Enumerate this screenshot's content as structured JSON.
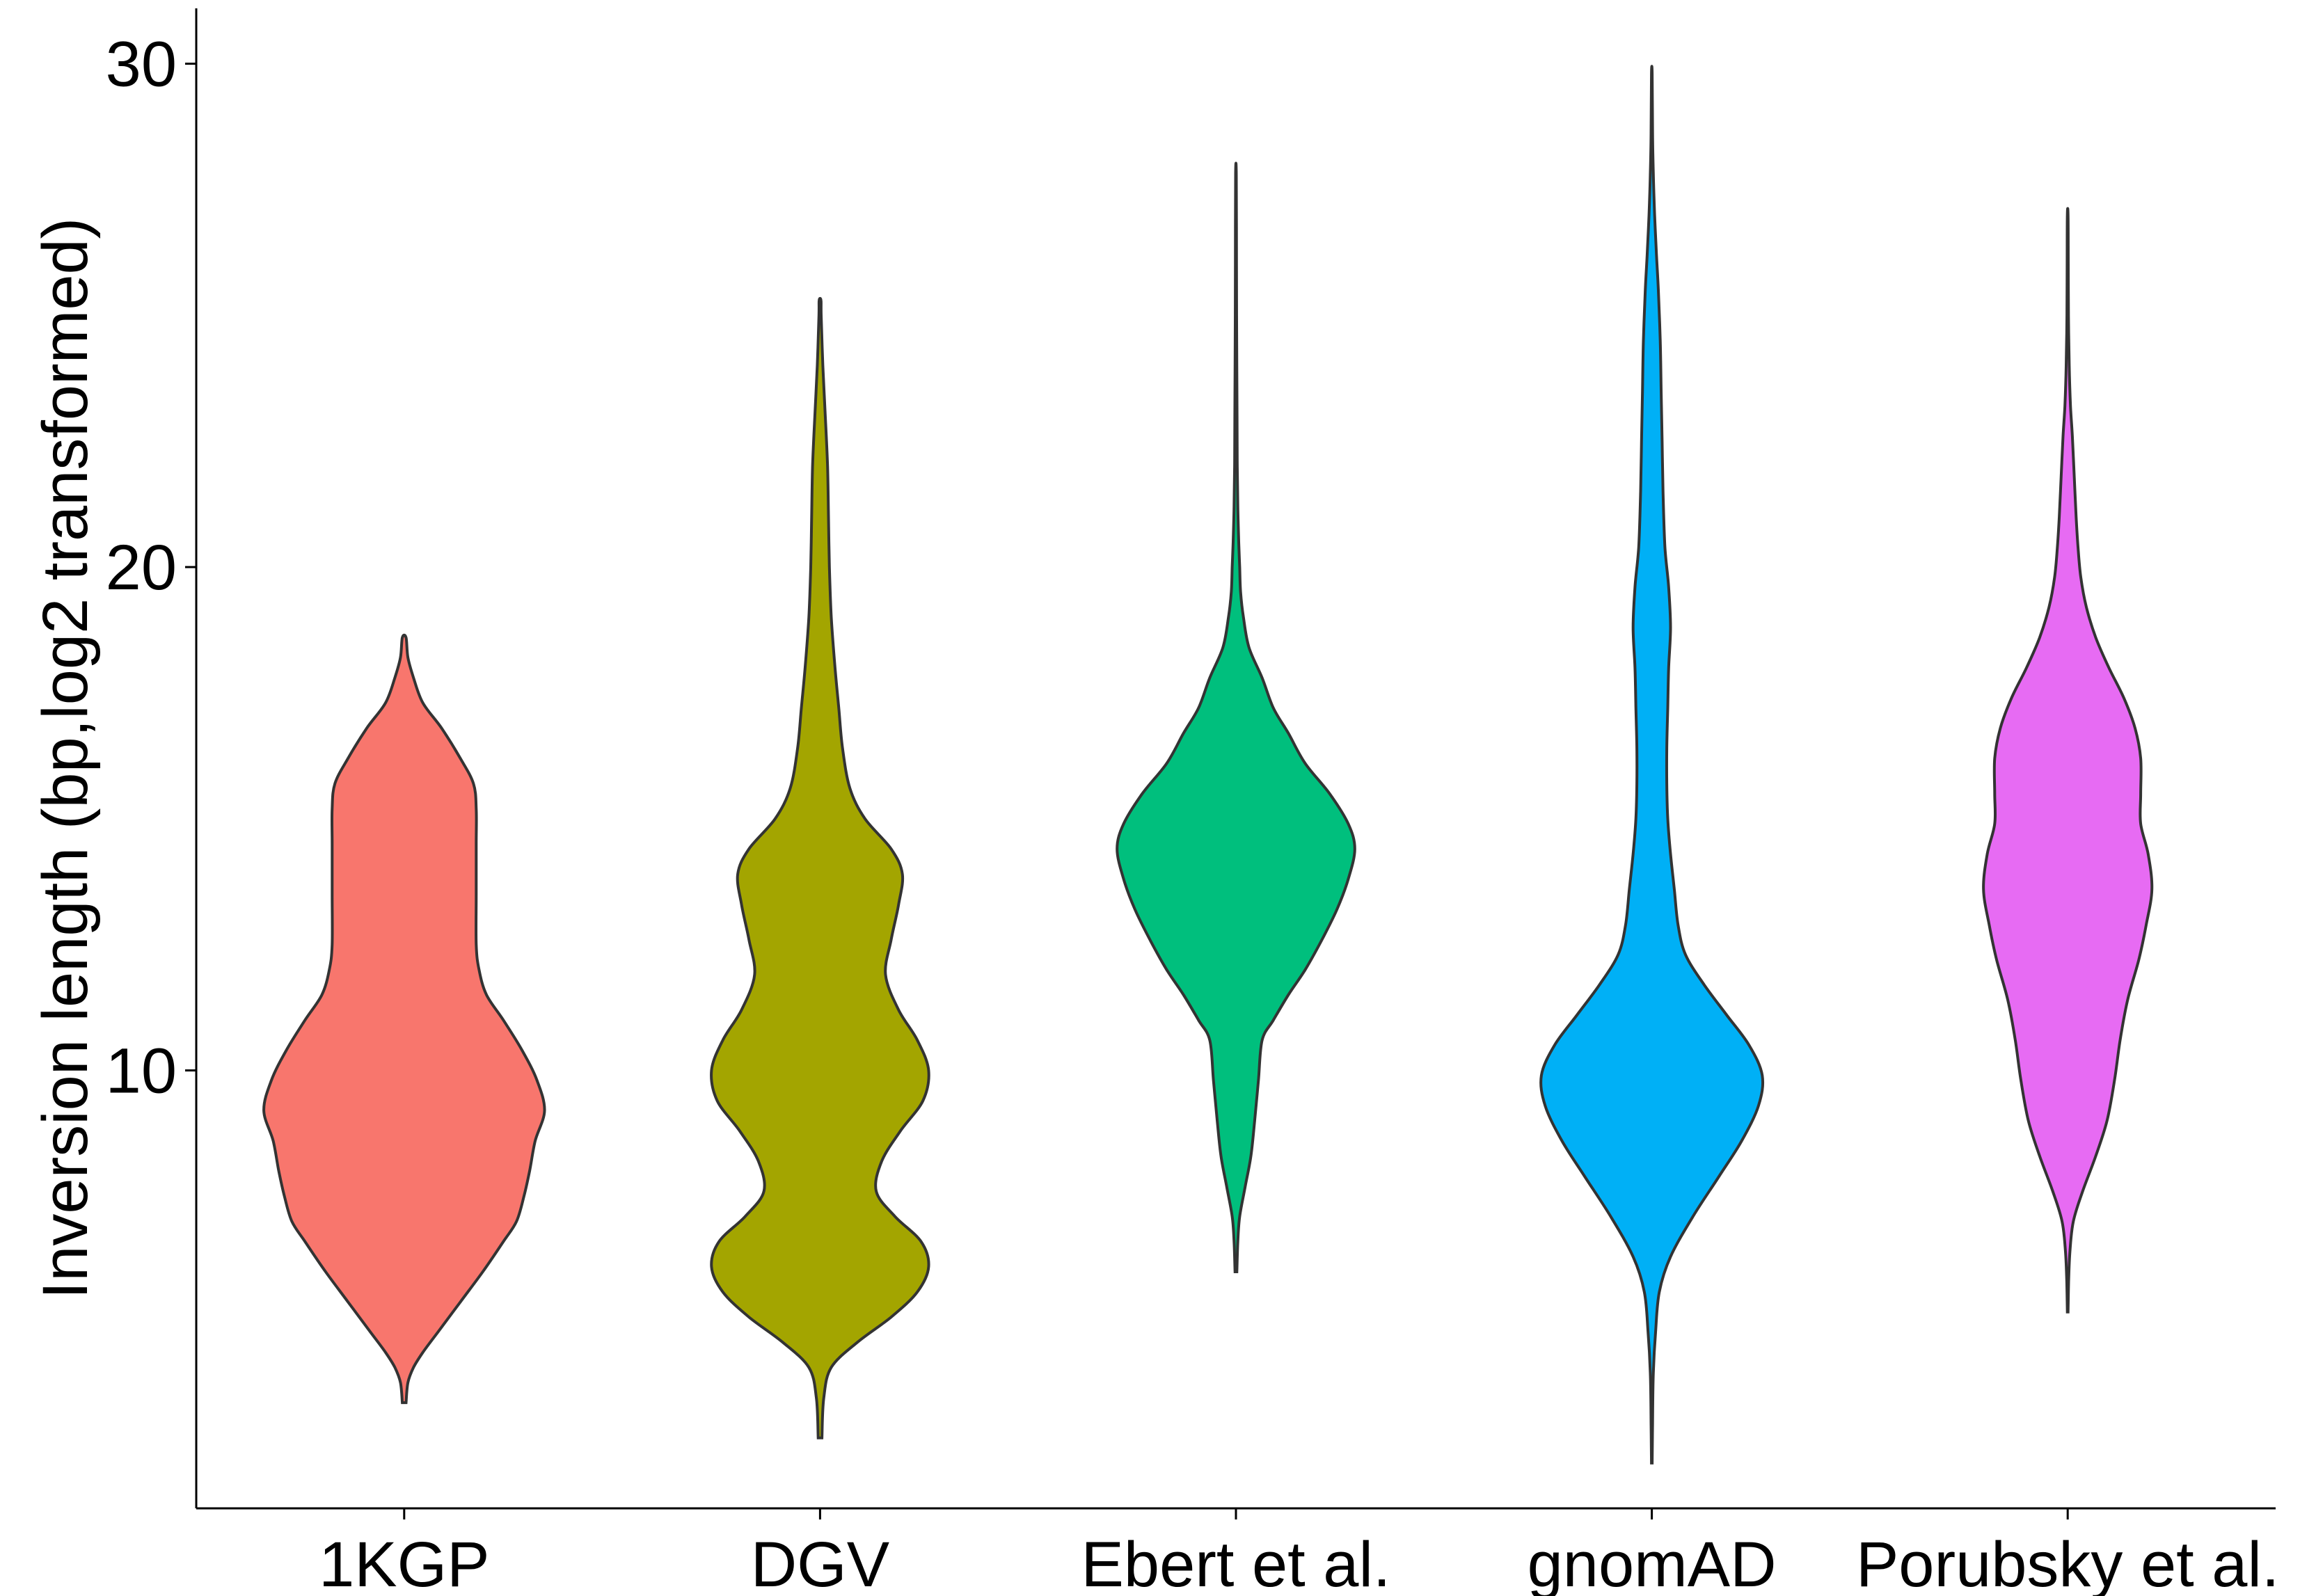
{
  "chart_data": {
    "type": "violin",
    "title": "",
    "xlabel": "",
    "ylabel": "Inversion length (bp,log2 transformed)",
    "ylim": [
      1.3,
      31.1
    ],
    "yticks": [
      10,
      20,
      30
    ],
    "ytick_labels": [
      "10",
      "20",
      "30"
    ],
    "grid": false,
    "legend": "none",
    "categories": [
      "1KGP",
      "DGV",
      "Ebert et al.",
      "gnomAD",
      "Porubsky et al."
    ],
    "series": [
      {
        "category": "1KGP",
        "color": "#F8766D",
        "range": [
          3.4,
          18.6
        ],
        "density": [
          [
            3.4,
            0.01
          ],
          [
            3.8,
            0.02
          ],
          [
            4.1,
            0.05
          ],
          [
            4.4,
            0.1
          ],
          [
            4.8,
            0.18
          ],
          [
            5.4,
            0.3
          ],
          [
            6.0,
            0.42
          ],
          [
            6.6,
            0.53
          ],
          [
            7.0,
            0.6
          ],
          [
            7.5,
            0.64
          ],
          [
            8.0,
            0.67
          ],
          [
            8.6,
            0.7
          ],
          [
            9.2,
            0.75
          ],
          [
            9.8,
            0.71
          ],
          [
            10.4,
            0.63
          ],
          [
            11.0,
            0.53
          ],
          [
            11.5,
            0.44
          ],
          [
            12.0,
            0.4
          ],
          [
            12.5,
            0.385
          ],
          [
            13.5,
            0.385
          ],
          [
            14.5,
            0.385
          ],
          [
            15.2,
            0.385
          ],
          [
            15.7,
            0.37
          ],
          [
            16.2,
            0.3
          ],
          [
            16.8,
            0.2
          ],
          [
            17.3,
            0.1
          ],
          [
            17.8,
            0.05
          ],
          [
            18.2,
            0.02
          ],
          [
            18.6,
            0.01
          ]
        ]
      },
      {
        "category": "DGV",
        "color": "#A3A500",
        "range": [
          2.7,
          25.3
        ],
        "density": [
          [
            2.7,
            0.01
          ],
          [
            3.5,
            0.02
          ],
          [
            4.1,
            0.06
          ],
          [
            4.6,
            0.2
          ],
          [
            5.1,
            0.38
          ],
          [
            5.6,
            0.52
          ],
          [
            6.1,
            0.58
          ],
          [
            6.6,
            0.54
          ],
          [
            7.1,
            0.4
          ],
          [
            7.6,
            0.3
          ],
          [
            8.2,
            0.33
          ],
          [
            8.8,
            0.43
          ],
          [
            9.4,
            0.55
          ],
          [
            10.0,
            0.58
          ],
          [
            10.6,
            0.52
          ],
          [
            11.2,
            0.42
          ],
          [
            11.9,
            0.35
          ],
          [
            12.6,
            0.38
          ],
          [
            13.3,
            0.42
          ],
          [
            13.9,
            0.44
          ],
          [
            14.4,
            0.38
          ],
          [
            15.0,
            0.24
          ],
          [
            15.6,
            0.16
          ],
          [
            16.4,
            0.12
          ],
          [
            17.2,
            0.1
          ],
          [
            18.0,
            0.08
          ],
          [
            19.0,
            0.06
          ],
          [
            20.0,
            0.05
          ],
          [
            21.0,
            0.045
          ],
          [
            22.0,
            0.04
          ],
          [
            23.0,
            0.028
          ],
          [
            24.0,
            0.015
          ],
          [
            25.0,
            0.006
          ],
          [
            25.3,
            0.005
          ]
        ]
      },
      {
        "category": "Ebert et al.",
        "color": "#00BF7D",
        "range": [
          6.0,
          27.8
        ],
        "density": [
          [
            6.0,
            0.005
          ],
          [
            6.6,
            0.01
          ],
          [
            7.1,
            0.02
          ],
          [
            7.7,
            0.05
          ],
          [
            8.3,
            0.08
          ],
          [
            9.0,
            0.1
          ],
          [
            9.8,
            0.12
          ],
          [
            10.6,
            0.14
          ],
          [
            11.0,
            0.2
          ],
          [
            11.5,
            0.28
          ],
          [
            12.0,
            0.37
          ],
          [
            12.6,
            0.46
          ],
          [
            13.2,
            0.54
          ],
          [
            13.8,
            0.6
          ],
          [
            14.4,
            0.635
          ],
          [
            14.9,
            0.6
          ],
          [
            15.5,
            0.5
          ],
          [
            16.1,
            0.37
          ],
          [
            16.7,
            0.28
          ],
          [
            17.2,
            0.2
          ],
          [
            17.8,
            0.14
          ],
          [
            18.4,
            0.07
          ],
          [
            19.0,
            0.04
          ],
          [
            19.5,
            0.025
          ],
          [
            20.0,
            0.02
          ],
          [
            20.5,
            0.015
          ],
          [
            21.2,
            0.01
          ],
          [
            22.0,
            0.007
          ],
          [
            23.0,
            0.006
          ],
          [
            24.5,
            0.004
          ],
          [
            26.0,
            0.003
          ],
          [
            27.8,
            0.002
          ]
        ]
      },
      {
        "category": "gnomAD",
        "color": "#00B0F6",
        "range": [
          2.2,
          29.8
        ],
        "density": [
          [
            2.2,
            0.002
          ],
          [
            3.0,
            0.004
          ],
          [
            4.0,
            0.008
          ],
          [
            4.8,
            0.02
          ],
          [
            5.6,
            0.04
          ],
          [
            6.3,
            0.1
          ],
          [
            7.1,
            0.22
          ],
          [
            7.9,
            0.36
          ],
          [
            8.6,
            0.48
          ],
          [
            9.3,
            0.57
          ],
          [
            9.9,
            0.59
          ],
          [
            10.5,
            0.52
          ],
          [
            11.1,
            0.4
          ],
          [
            11.7,
            0.28
          ],
          [
            12.3,
            0.18
          ],
          [
            12.9,
            0.14
          ],
          [
            13.6,
            0.12
          ],
          [
            14.3,
            0.1
          ],
          [
            15.0,
            0.085
          ],
          [
            15.7,
            0.08
          ],
          [
            16.4,
            0.08
          ],
          [
            17.2,
            0.085
          ],
          [
            18.0,
            0.09
          ],
          [
            18.8,
            0.1
          ],
          [
            19.6,
            0.09
          ],
          [
            20.4,
            0.07
          ],
          [
            21.5,
            0.06
          ],
          [
            22.5,
            0.055
          ],
          [
            23.5,
            0.05
          ],
          [
            24.5,
            0.045
          ],
          [
            25.5,
            0.035
          ],
          [
            26.2,
            0.025
          ],
          [
            27.0,
            0.015
          ],
          [
            27.8,
            0.008
          ],
          [
            28.6,
            0.004
          ],
          [
            29.8,
            0.002
          ]
        ]
      },
      {
        "category": "Porubsky et al.",
        "color": "#E76BF3",
        "range": [
          5.2,
          27.0
        ],
        "density": [
          [
            5.2,
            0.002
          ],
          [
            5.8,
            0.005
          ],
          [
            6.4,
            0.012
          ],
          [
            7.0,
            0.03
          ],
          [
            7.6,
            0.08
          ],
          [
            8.3,
            0.15
          ],
          [
            9.0,
            0.21
          ],
          [
            9.8,
            0.25
          ],
          [
            10.6,
            0.28
          ],
          [
            11.4,
            0.32
          ],
          [
            12.2,
            0.38
          ],
          [
            12.9,
            0.42
          ],
          [
            13.6,
            0.45
          ],
          [
            14.3,
            0.43
          ],
          [
            14.9,
            0.39
          ],
          [
            15.5,
            0.39
          ],
          [
            16.2,
            0.39
          ],
          [
            16.8,
            0.36
          ],
          [
            17.4,
            0.3
          ],
          [
            18.0,
            0.22
          ],
          [
            18.6,
            0.15
          ],
          [
            19.2,
            0.1
          ],
          [
            19.8,
            0.07
          ],
          [
            20.4,
            0.055
          ],
          [
            21.0,
            0.045
          ],
          [
            21.8,
            0.035
          ],
          [
            22.6,
            0.025
          ],
          [
            23.2,
            0.015
          ],
          [
            24.0,
            0.008
          ],
          [
            25.0,
            0.004
          ],
          [
            26.0,
            0.003
          ],
          [
            27.0,
            0.002
          ]
        ]
      }
    ]
  }
}
